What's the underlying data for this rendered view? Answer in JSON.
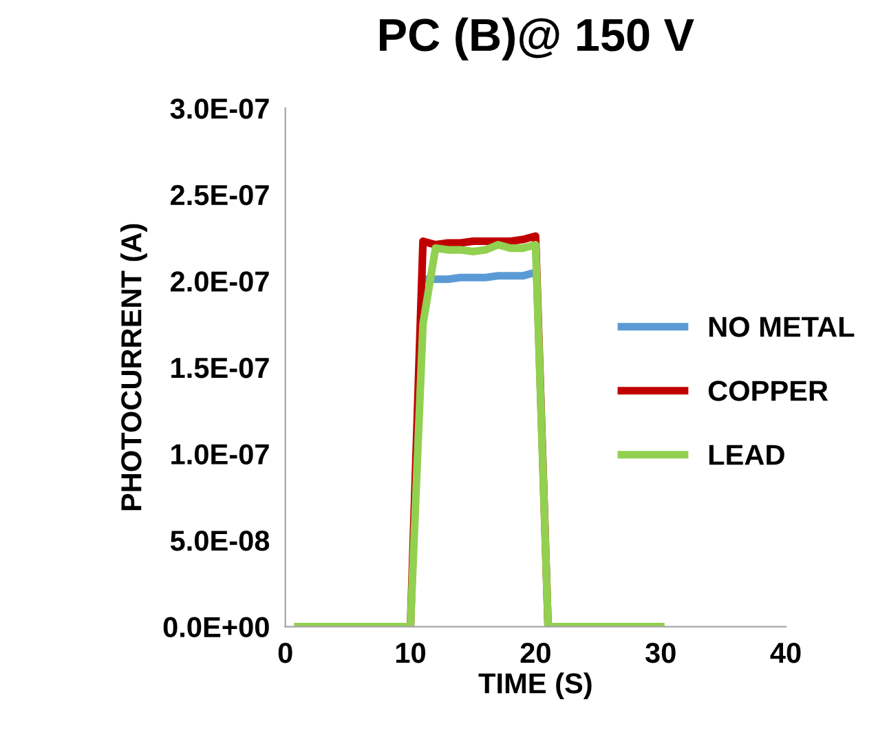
{
  "chart_data": {
    "type": "line",
    "title": "PC (B)@ 150 V",
    "xlabel": "TIME (S)",
    "ylabel": "PHOTOCURRENT (A)",
    "x": [
      1,
      2,
      3,
      4,
      5,
      6,
      7,
      8,
      9,
      10,
      11,
      12,
      13,
      14,
      15,
      16,
      17,
      18,
      19,
      20,
      21,
      22,
      23,
      24,
      25,
      26,
      27,
      28,
      29,
      30
    ],
    "series": [
      {
        "name": "NO METAL",
        "color": "#5b9bd5",
        "values": [
          null,
          null,
          null,
          null,
          null,
          null,
          null,
          null,
          null,
          null,
          2.01e-07,
          2.01e-07,
          2.01e-07,
          2.02e-07,
          2.02e-07,
          2.02e-07,
          2.03e-07,
          2.03e-07,
          2.03e-07,
          2.05e-07,
          null,
          null,
          null,
          null,
          null,
          null,
          null,
          null,
          null,
          null
        ]
      },
      {
        "name": "COPPER",
        "color": "#c00000",
        "values": [
          null,
          null,
          null,
          null,
          null,
          null,
          null,
          null,
          null,
          0,
          2.23e-07,
          2.21e-07,
          2.22e-07,
          2.22e-07,
          2.23e-07,
          2.23e-07,
          2.23e-07,
          2.23e-07,
          2.24e-07,
          2.26e-07,
          0,
          null,
          null,
          null,
          null,
          null,
          null,
          null,
          null,
          null
        ]
      },
      {
        "name": "LEAD",
        "color": "#92d050",
        "values": [
          0,
          0,
          0,
          0,
          0,
          0,
          0,
          0,
          0,
          0,
          1.75e-07,
          2.19e-07,
          2.18e-07,
          2.18e-07,
          2.17e-07,
          2.18e-07,
          2.21e-07,
          2.19e-07,
          2.19e-07,
          2.21e-07,
          0,
          0,
          0,
          0,
          0,
          0,
          0,
          0,
          0,
          0
        ]
      }
    ],
    "xlim": [
      0,
      40
    ],
    "xticks": [
      0,
      10,
      20,
      30,
      40
    ],
    "ylim": [
      0,
      3e-07
    ],
    "yticks": [
      {
        "value": 0,
        "label": "0.0E+00"
      },
      {
        "value": 5e-08,
        "label": "5.0E-08"
      },
      {
        "value": 1e-07,
        "label": "1.0E-07"
      },
      {
        "value": 1.5e-07,
        "label": "1.5E-07"
      },
      {
        "value": 2e-07,
        "label": "2.0E-07"
      },
      {
        "value": 2.5e-07,
        "label": "2.5E-07"
      },
      {
        "value": 3e-07,
        "label": "3.0E-07"
      }
    ],
    "legend": "right",
    "grid": false,
    "marker": "none",
    "line_style": "solid"
  }
}
